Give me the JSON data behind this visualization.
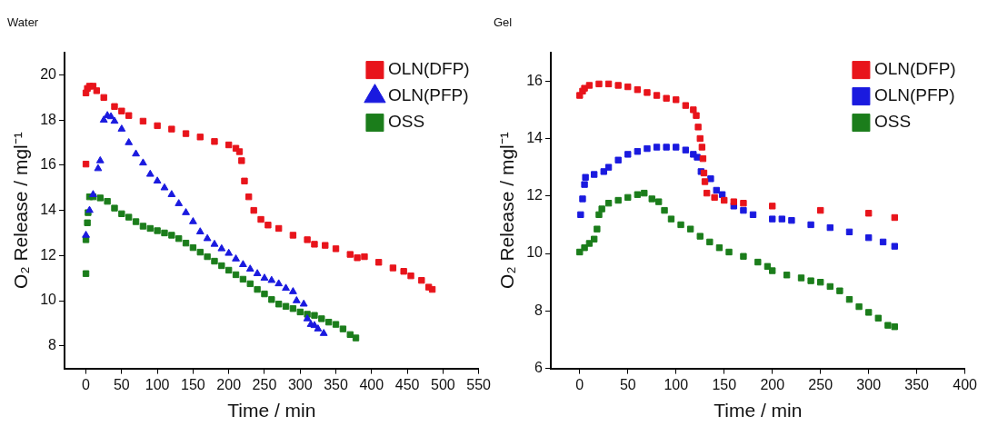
{
  "chart_data": [
    {
      "type": "scatter",
      "title": "Water",
      "xlabel": "Time / min",
      "ylabel": "O₂ Release / mgl⁻¹",
      "xlim": [
        -30,
        550
      ],
      "xticks": [
        0,
        50,
        100,
        150,
        200,
        250,
        300,
        350,
        400,
        450,
        500,
        550
      ],
      "ylim": [
        7,
        21
      ],
      "yticks": [
        8,
        10,
        12,
        14,
        16,
        18,
        20
      ],
      "grid": false,
      "legend": "top right",
      "series": [
        {
          "name": "OLN(DFP)",
          "color": "#e8141b",
          "marker": "square",
          "x": [
            0,
            0,
            2,
            5,
            10,
            15,
            25,
            40,
            50,
            60,
            80,
            100,
            120,
            140,
            160,
            180,
            200,
            210,
            215,
            218,
            222,
            228,
            235,
            245,
            255,
            270,
            290,
            310,
            320,
            335,
            350,
            370,
            380,
            390,
            410,
            430,
            445,
            455,
            470,
            480,
            485
          ],
          "values": [
            16.05,
            19.2,
            19.4,
            19.5,
            19.5,
            19.3,
            19.0,
            18.6,
            18.4,
            18.2,
            17.95,
            17.75,
            17.6,
            17.4,
            17.25,
            17.05,
            16.9,
            16.75,
            16.6,
            16.2,
            15.3,
            14.6,
            14.0,
            13.6,
            13.35,
            13.2,
            12.9,
            12.7,
            12.5,
            12.45,
            12.3,
            12.05,
            11.9,
            11.95,
            11.7,
            11.45,
            11.3,
            11.1,
            10.9,
            10.6,
            10.5
          ]
        },
        {
          "name": "OLN(PFP)",
          "color": "#1a1adf",
          "marker": "triangle",
          "x": [
            0,
            5,
            10,
            17,
            20,
            25,
            30,
            35,
            40,
            50,
            60,
            70,
            80,
            90,
            100,
            110,
            120,
            130,
            140,
            150,
            160,
            170,
            180,
            190,
            200,
            210,
            220,
            230,
            240,
            250,
            260,
            270,
            280,
            290,
            295,
            305,
            310,
            315,
            320,
            325,
            333
          ],
          "values": [
            12.9,
            14.0,
            14.7,
            15.85,
            16.2,
            18.0,
            18.2,
            18.15,
            17.95,
            17.6,
            17.0,
            16.5,
            16.1,
            15.6,
            15.3,
            15.0,
            14.7,
            14.3,
            13.9,
            13.5,
            13.05,
            12.75,
            12.5,
            12.3,
            12.1,
            11.85,
            11.6,
            11.4,
            11.2,
            11.0,
            10.9,
            10.75,
            10.55,
            10.4,
            10.0,
            9.85,
            9.2,
            8.95,
            8.9,
            8.75,
            8.55
          ]
        },
        {
          "name": "OSS",
          "color": "#1b7d1b",
          "marker": "square",
          "x": [
            0,
            0,
            2,
            3,
            5,
            10,
            20,
            30,
            40,
            50,
            60,
            70,
            80,
            90,
            100,
            110,
            120,
            130,
            140,
            150,
            160,
            170,
            180,
            190,
            200,
            210,
            220,
            230,
            240,
            250,
            260,
            270,
            280,
            290,
            300,
            310,
            320,
            330,
            340,
            350,
            360,
            370,
            378
          ],
          "values": [
            11.2,
            12.7,
            13.45,
            13.9,
            14.6,
            14.6,
            14.55,
            14.4,
            14.1,
            13.85,
            13.7,
            13.5,
            13.3,
            13.2,
            13.1,
            13.0,
            12.9,
            12.75,
            12.55,
            12.35,
            12.15,
            11.95,
            11.75,
            11.55,
            11.35,
            11.15,
            10.95,
            10.75,
            10.5,
            10.3,
            10.05,
            9.85,
            9.75,
            9.65,
            9.5,
            9.4,
            9.35,
            9.2,
            9.05,
            8.95,
            8.75,
            8.5,
            8.35
          ]
        }
      ]
    },
    {
      "type": "scatter",
      "title": "Gel",
      "xlabel": "Time / min",
      "ylabel": "O₂ Release / mgl⁻¹",
      "xlim": [
        -30,
        400
      ],
      "xticks": [
        0,
        50,
        100,
        150,
        200,
        250,
        300,
        350,
        400
      ],
      "ylim": [
        6,
        17
      ],
      "yticks": [
        6,
        8,
        10,
        12,
        14,
        16
      ],
      "grid": false,
      "legend": "top right",
      "series": [
        {
          "name": "OLN(DFP)",
          "color": "#e8141b",
          "marker": "square",
          "x": [
            0,
            3,
            5,
            10,
            20,
            30,
            40,
            50,
            60,
            70,
            80,
            90,
            100,
            110,
            118,
            121,
            123,
            125,
            127,
            128,
            129,
            130,
            132,
            140,
            150,
            160,
            170,
            200,
            250,
            300,
            327
          ],
          "values": [
            15.5,
            15.65,
            15.75,
            15.85,
            15.9,
            15.9,
            15.85,
            15.8,
            15.7,
            15.6,
            15.5,
            15.4,
            15.35,
            15.15,
            15.0,
            14.8,
            14.4,
            14.0,
            13.7,
            13.3,
            12.8,
            12.5,
            12.1,
            11.95,
            11.85,
            11.8,
            11.75,
            11.65,
            11.5,
            11.4,
            11.25
          ]
        },
        {
          "name": "OLN(PFP)",
          "color": "#1a1adf",
          "marker": "square",
          "x": [
            1,
            3,
            5,
            6,
            15,
            25,
            30,
            40,
            50,
            60,
            70,
            80,
            90,
            100,
            110,
            118,
            122,
            126,
            136,
            142,
            148,
            160,
            170,
            180,
            200,
            210,
            220,
            240,
            260,
            280,
            300,
            315,
            327
          ],
          "values": [
            11.35,
            11.9,
            12.4,
            12.65,
            12.75,
            12.85,
            13.0,
            13.25,
            13.45,
            13.55,
            13.65,
            13.7,
            13.7,
            13.7,
            13.6,
            13.45,
            13.35,
            12.85,
            12.6,
            12.2,
            12.05,
            11.65,
            11.5,
            11.35,
            11.2,
            11.2,
            11.15,
            11.0,
            10.9,
            10.75,
            10.55,
            10.4,
            10.25
          ]
        },
        {
          "name": "OSS",
          "color": "#1b7d1b",
          "marker": "square",
          "x": [
            0,
            5,
            10,
            15,
            18,
            20,
            23,
            30,
            40,
            50,
            60,
            67,
            75,
            82,
            88,
            95,
            105,
            115,
            125,
            135,
            145,
            155,
            170,
            185,
            195,
            200,
            215,
            230,
            240,
            250,
            260,
            270,
            280,
            290,
            300,
            310,
            320,
            327
          ],
          "values": [
            10.05,
            10.2,
            10.35,
            10.5,
            10.85,
            11.35,
            11.55,
            11.75,
            11.85,
            11.95,
            12.05,
            12.1,
            11.9,
            11.8,
            11.5,
            11.2,
            11.0,
            10.85,
            10.6,
            10.4,
            10.2,
            10.05,
            9.9,
            9.7,
            9.55,
            9.4,
            9.25,
            9.15,
            9.05,
            9.0,
            8.85,
            8.7,
            8.4,
            8.15,
            7.95,
            7.75,
            7.5,
            7.45
          ]
        }
      ]
    }
  ]
}
